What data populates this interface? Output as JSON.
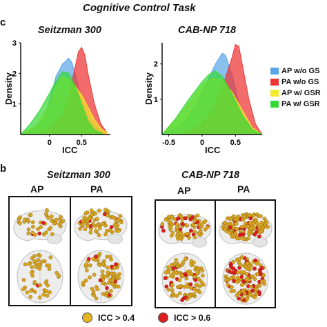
{
  "figure_title": "Cognitive Control Task",
  "panel_a_letter": "c",
  "panel_b_letter": "b",
  "legend": {
    "items": [
      {
        "label": "AP w/o GS",
        "color": "#5aa6e6"
      },
      {
        "label": "PA w/o GS",
        "color": "#ee3333"
      },
      {
        "label": "AP w/ GSR",
        "color": "#f2ea2a"
      },
      {
        "label": "PA w/ GSR",
        "color": "#36d836"
      }
    ]
  },
  "chart_data": [
    {
      "type": "area",
      "title": "Seitzman 300",
      "xlabel": "ICC",
      "ylabel": "Density",
      "xlim": [
        -0.45,
        0.95
      ],
      "ylim": [
        0,
        3
      ],
      "x_ticks": [
        "0",
        "0.5"
      ],
      "y_ticks": [
        "1",
        "2",
        "3"
      ],
      "series": [
        {
          "name": "AP w/o GS",
          "x": [
            -0.45,
            -0.25,
            -0.1,
            0.0,
            0.1,
            0.2,
            0.3,
            0.35,
            0.4,
            0.5,
            0.6,
            0.7,
            0.8,
            0.9
          ],
          "values": [
            0,
            0.15,
            0.5,
            1.1,
            1.9,
            2.3,
            2.5,
            2.35,
            2.0,
            1.2,
            0.6,
            0.3,
            0.15,
            0.05
          ]
        },
        {
          "name": "PA w/o GS",
          "x": [
            -0.2,
            0.0,
            0.2,
            0.3,
            0.4,
            0.45,
            0.5,
            0.55,
            0.6,
            0.7,
            0.8,
            0.9
          ],
          "values": [
            0,
            0.2,
            0.6,
            1.2,
            2.2,
            2.7,
            2.85,
            2.6,
            2.0,
            1.0,
            0.35,
            0.05
          ]
        },
        {
          "name": "AP w/ GSR",
          "x": [
            -0.45,
            -0.2,
            0.0,
            0.1,
            0.2,
            0.3,
            0.4,
            0.5,
            0.6,
            0.7,
            0.8,
            0.9
          ],
          "values": [
            0,
            0.3,
            1.0,
            1.6,
            1.9,
            1.8,
            1.6,
            1.3,
            0.9,
            0.5,
            0.2,
            0.05
          ]
        },
        {
          "name": "PA w/ GSR",
          "x": [
            -0.45,
            -0.3,
            -0.15,
            0.0,
            0.1,
            0.2,
            0.3,
            0.4,
            0.5,
            0.6,
            0.7,
            0.85
          ],
          "values": [
            0,
            0.35,
            0.8,
            1.35,
            1.75,
            2.05,
            2.0,
            1.6,
            1.0,
            0.45,
            0.15,
            0
          ]
        }
      ]
    },
    {
      "type": "area",
      "title": "CAB-NP 718",
      "xlabel": "ICC",
      "ylabel": "Density",
      "xlim": [
        -0.6,
        0.9
      ],
      "ylim": [
        0,
        2.6
      ],
      "x_ticks": [
        "-0.5",
        "0",
        "0.5"
      ],
      "y_ticks": [
        "1",
        "2"
      ],
      "series": [
        {
          "name": "AP w/o GS",
          "x": [
            -0.6,
            -0.3,
            -0.1,
            0.05,
            0.2,
            0.3,
            0.35,
            0.45,
            0.55,
            0.65,
            0.8,
            0.9
          ],
          "values": [
            0,
            0.3,
            0.8,
            1.4,
            2.0,
            2.3,
            2.25,
            1.7,
            0.9,
            0.4,
            0.1,
            0
          ]
        },
        {
          "name": "PA w/o GS",
          "x": [
            -0.3,
            0.0,
            0.2,
            0.35,
            0.45,
            0.5,
            0.55,
            0.6,
            0.7,
            0.8,
            0.9
          ],
          "values": [
            0,
            0.3,
            0.8,
            1.6,
            2.2,
            2.55,
            2.5,
            2.0,
            1.0,
            0.3,
            0
          ]
        },
        {
          "name": "AP w/ GSR",
          "x": [
            -0.6,
            -0.4,
            -0.2,
            0.0,
            0.15,
            0.3,
            0.45,
            0.6,
            0.75,
            0.9
          ],
          "values": [
            0,
            0.4,
            0.9,
            1.4,
            1.6,
            1.55,
            1.2,
            0.7,
            0.2,
            0
          ]
        },
        {
          "name": "PA w/ GSR",
          "x": [
            -0.6,
            -0.4,
            -0.2,
            0.0,
            0.1,
            0.2,
            0.3,
            0.45,
            0.6,
            0.75,
            0.9
          ],
          "values": [
            0,
            0.45,
            1.0,
            1.5,
            1.7,
            1.8,
            1.65,
            1.15,
            0.55,
            0.15,
            0
          ]
        }
      ]
    }
  ],
  "panel_b": {
    "groups": [
      {
        "title": "Seitzman 300",
        "left_label": "AP",
        "right_label": "PA"
      },
      {
        "title": "CAB-NP 718",
        "left_label": "AP",
        "right_label": "PA"
      }
    ],
    "dot_legend": [
      {
        "label": "ICC > 0.4",
        "color": "#e6b422"
      },
      {
        "label": "ICC > 0.6",
        "color": "#dd1f1f"
      }
    ]
  }
}
